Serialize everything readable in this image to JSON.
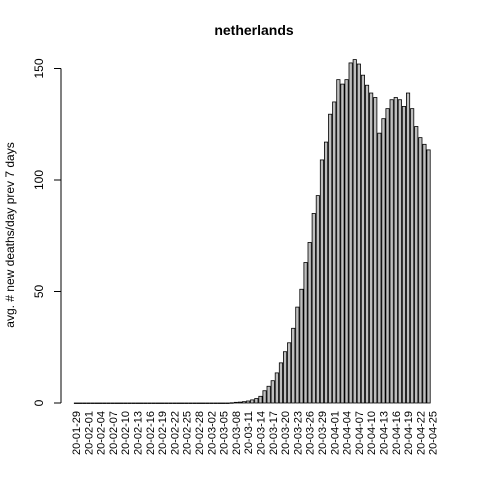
{
  "chart_data": {
    "type": "bar",
    "title": "netherlands",
    "xlabel": "",
    "ylabel": "avg. # new deaths/day prev  7  days",
    "ylim": [
      0,
      155
    ],
    "yticks": [
      0,
      50,
      100,
      150
    ],
    "grid": false,
    "bar_fill": "#bebebe",
    "bar_stroke": "#000000",
    "start_date": "2020-01-29",
    "tick_every": 3,
    "tick_labels": [
      "20-01-29",
      "20-02-01",
      "20-02-04",
      "20-02-07",
      "20-02-10",
      "20-02-13",
      "20-02-16",
      "20-02-19",
      "20-02-22",
      "20-02-25",
      "20-02-28",
      "20-03-02",
      "20-03-05",
      "20-03-08",
      "20-03-11",
      "20-03-14",
      "20-03-17",
      "20-03-20",
      "20-03-23",
      "20-03-26",
      "20-03-29",
      "20-04-01",
      "20-04-04",
      "20-04-07",
      "20-04-10",
      "20-04-13",
      "20-04-16",
      "20-04-19",
      "20-04-22",
      "20-04-25"
    ],
    "values": [
      0,
      0,
      0,
      0,
      0,
      0,
      0,
      0,
      0,
      0,
      0,
      0,
      0,
      0,
      0,
      0,
      0,
      0,
      0,
      0,
      0,
      0,
      0,
      0,
      0,
      0,
      0,
      0,
      0,
      0,
      0,
      0,
      0,
      0,
      0,
      0,
      0,
      0,
      0.1,
      0.3,
      0.4,
      0.6,
      0.9,
      1.4,
      2.0,
      3.0,
      5.5,
      7.5,
      10.0,
      13.5,
      18.0,
      23.0,
      27.0,
      33.5,
      43.0,
      51.0,
      63.0,
      72.0,
      85.0,
      93.0,
      109.0,
      117.0,
      129.5,
      135.0,
      145.0,
      143.0,
      145.0,
      152.5,
      154.0,
      152.0,
      147.0,
      142.5,
      139.0,
      137.0,
      121.0,
      127.5,
      132.0,
      136.0,
      137.0,
      136.0,
      133.0,
      139.0,
      132.0,
      124.0,
      119.0,
      116.0,
      113.5
    ]
  }
}
